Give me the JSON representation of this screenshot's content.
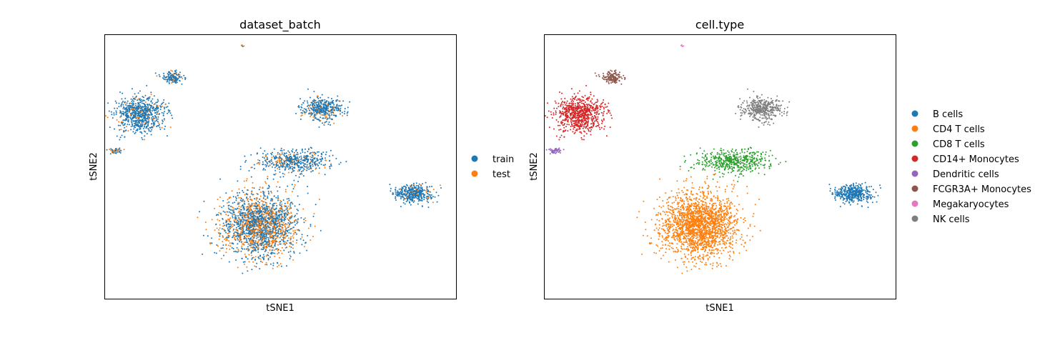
{
  "chart_data": [
    {
      "type": "scatter",
      "title": "dataset_batch",
      "xlabel": "tSNE1",
      "ylabel": "tSNE2",
      "xlim": [
        -50,
        50
      ],
      "ylim": [
        -50,
        50
      ],
      "grid": false,
      "ticks": false,
      "legend_position": "right",
      "series": [
        {
          "name": "train",
          "color": "#1f77b4"
        },
        {
          "name": "test",
          "color": "#ff7f0e"
        }
      ],
      "clusters": [
        {
          "label": "CD4 T cells",
          "center": [
            -6,
            -22
          ],
          "spread": [
            10,
            11
          ],
          "n": 2000,
          "mix": {
            "train": 0.6,
            "test": 0.4
          }
        },
        {
          "label": "CD8 T cells",
          "center": [
            4,
            2
          ],
          "spread": [
            9,
            4
          ],
          "n": 500,
          "mix": {
            "train": 0.85,
            "test": 0.15
          }
        },
        {
          "label": "NK cells",
          "center": [
            12,
            22
          ],
          "spread": [
            5,
            4
          ],
          "n": 420,
          "mix": {
            "train": 0.85,
            "test": 0.15
          }
        },
        {
          "label": "CD14+ Monocytes",
          "center": [
            -40,
            20
          ],
          "spread": [
            6,
            6
          ],
          "n": 750,
          "mix": {
            "train": 0.9,
            "test": 0.1
          }
        },
        {
          "label": "FCGR3A+ Monocytes",
          "center": [
            -31,
            34
          ],
          "spread": [
            3,
            2
          ],
          "n": 140,
          "mix": {
            "train": 0.8,
            "test": 0.2
          }
        },
        {
          "label": "B cells",
          "center": [
            38,
            -10
          ],
          "spread": [
            5,
            3
          ],
          "n": 420,
          "mix": {
            "train": 0.92,
            "test": 0.08
          }
        },
        {
          "label": "Dendritic cells",
          "center": [
            -47,
            6
          ],
          "spread": [
            1.5,
            1
          ],
          "n": 45,
          "mix": {
            "train": 0.7,
            "test": 0.3
          }
        },
        {
          "label": "Megakaryocytes",
          "center": [
            -11,
            46
          ],
          "spread": [
            0.4,
            0.3
          ],
          "n": 6,
          "mix": {
            "train": 0.5,
            "test": 0.5
          }
        }
      ]
    },
    {
      "type": "scatter",
      "title": "cell.type",
      "xlabel": "tSNE1",
      "ylabel": "tSNE2",
      "xlim": [
        -50,
        50
      ],
      "ylim": [
        -50,
        50
      ],
      "grid": false,
      "ticks": false,
      "legend_position": "right",
      "series": [
        {
          "name": "B cells",
          "color": "#1f77b4"
        },
        {
          "name": "CD4 T cells",
          "color": "#ff7f0e"
        },
        {
          "name": "CD8 T cells",
          "color": "#2ca02c"
        },
        {
          "name": "CD14+ Monocytes",
          "color": "#d62728"
        },
        {
          "name": "Dendritic cells",
          "color": "#9467bd"
        },
        {
          "name": "FCGR3A+ Monocytes",
          "color": "#8c564b"
        },
        {
          "name": "Megakaryocytes",
          "color": "#e377c2"
        },
        {
          "name": "NK cells",
          "color": "#7f7f7f"
        }
      ]
    }
  ]
}
